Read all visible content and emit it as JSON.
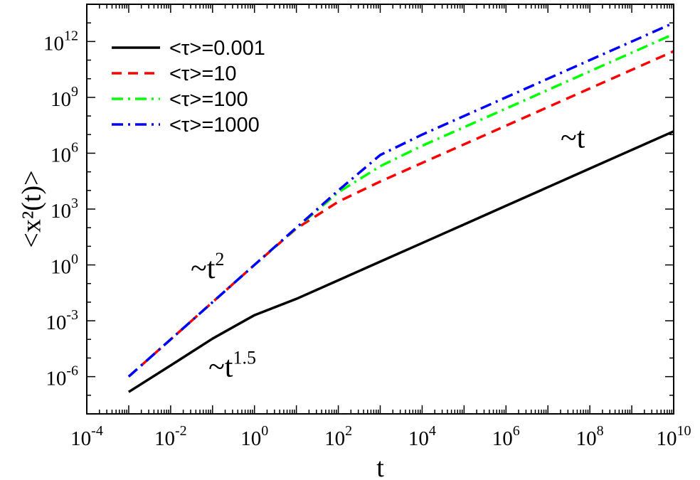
{
  "chart_data": {
    "type": "line",
    "title": "",
    "xlabel": "t",
    "ylabel": "<x²(t)>",
    "x_scale": "log",
    "y_scale": "log",
    "xlim": [
      0.0001,
      10000000000
    ],
    "ylim": [
      1e-08,
      100000000000000.0
    ],
    "x_tick_exponents": [
      -4,
      -2,
      0,
      2,
      4,
      6,
      8,
      10
    ],
    "y_tick_exponents": [
      -6,
      -3,
      0,
      3,
      6,
      9,
      12
    ],
    "tick_base": "10",
    "grid": false,
    "legend_position": "top-left",
    "series": [
      {
        "name": "<τ>=0.001",
        "color": "#000000",
        "dash": "solid",
        "x": [
          0.001,
          0.01,
          0.1,
          1,
          10,
          100,
          1000,
          10000,
          100000,
          1000000,
          10000000,
          100000000,
          1000000000,
          10000000000
        ],
        "y": [
          1.5e-07,
          4e-06,
          0.00011,
          0.002,
          0.015,
          0.15,
          1.5,
          15,
          150,
          1500,
          15000,
          150000,
          1500000,
          15000000
        ]
      },
      {
        "name": "<τ>=10",
        "color": "#ff0000",
        "dash": "dashed",
        "x": [
          0.001,
          0.01,
          0.1,
          1,
          10,
          100,
          1000,
          10000,
          100000,
          1000000,
          10000000,
          100000000,
          1000000000,
          10000000000
        ],
        "y": [
          1e-06,
          0.0001,
          0.01,
          1,
          90,
          2500,
          30000,
          300000,
          3000000,
          30000000,
          300000000,
          3000000000,
          30000000000,
          300000000000
        ]
      },
      {
        "name": "<τ>=100",
        "color": "#00ff00",
        "dash": "dashdot",
        "x": [
          0.001,
          0.01,
          0.1,
          1,
          10,
          100,
          1000,
          10000,
          100000,
          1000000,
          10000000,
          100000000,
          1000000000,
          10000000000
        ],
        "y": [
          1e-06,
          0.0001,
          0.01,
          1,
          95,
          8000,
          200000,
          2500000,
          25000000,
          250000000,
          2500000000,
          25000000000,
          250000000000,
          2500000000000
        ]
      },
      {
        "name": "<τ>=1000",
        "color": "#0000ff",
        "dash": "dashdot",
        "x": [
          0.001,
          0.01,
          0.1,
          1,
          10,
          100,
          1000,
          10000,
          100000,
          1000000,
          10000000,
          100000000,
          1000000000,
          10000000000
        ],
        "y": [
          1e-06,
          0.0001,
          0.01,
          1,
          100,
          10000,
          800000,
          10000000,
          100000000,
          1000000000,
          10000000000,
          100000000000,
          1000000000000,
          10000000000000
        ]
      }
    ],
    "annotations": [
      {
        "base": "~t",
        "exp": "2",
        "x": 0.03,
        "y": 0.2
      },
      {
        "base": "~t",
        "exp": "1.5",
        "x": 0.08,
        "y": 1e-06
      },
      {
        "base": "~t",
        "exp": "",
        "x": 20000000,
        "y": 2000000
      }
    ]
  }
}
